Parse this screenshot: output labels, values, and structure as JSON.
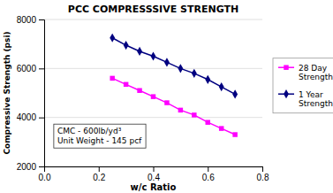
{
  "chart_data": {
    "type": "line",
    "title": "PCC COMPRESSSIVE STRENGTH",
    "xlabel": "w/c Ratio",
    "ylabel": "Compressive Strength (psi)",
    "x": [
      0.25,
      0.3,
      0.35,
      0.4,
      0.45,
      0.5,
      0.55,
      0.6,
      0.65,
      0.7
    ],
    "series": [
      {
        "name": "28 Day\nStrength",
        "color": "#FF00FF",
        "marker": "square",
        "values": [
          5600,
          5350,
          5100,
          4850,
          4600,
          4300,
          4100,
          3800,
          3550,
          3300
        ]
      },
      {
        "name": "1 Year\nStrength",
        "color": "#000080",
        "marker": "diamond",
        "values": [
          7250,
          6950,
          6700,
          6500,
          6250,
          6000,
          5800,
          5550,
          5250,
          4950
        ]
      }
    ],
    "xlim": [
      0,
      0.8
    ],
    "ylim": [
      2000,
      8000
    ],
    "xticks": [
      {
        "value": 0.0,
        "label": "0.0"
      },
      0.2,
      0.4,
      0.6,
      0.8
    ],
    "yticks": [
      2000,
      4000,
      6000,
      8000
    ],
    "grid": "y",
    "legend": "right",
    "annotation": "CMC - 600lb/yd³\nUnit Weight - 145 pcf"
  }
}
